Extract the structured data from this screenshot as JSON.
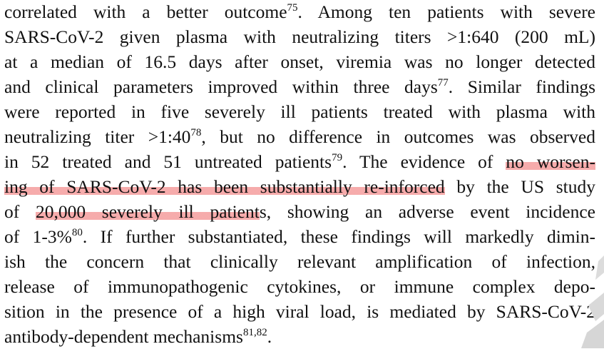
{
  "paragraph": {
    "l1": {
      "text": "correlated with a better outcome",
      "ref": "75",
      "tail": ". Among ten patients with severe"
    },
    "l2": {
      "text": "SARS-CoV-2 given plasma with neutralizing titers >1:640 (200 mL)"
    },
    "l3": {
      "text": "at a median of 16.5 days after onset, viremia was no longer detected"
    },
    "l4": {
      "text": "and clinical parameters improved within three days",
      "ref": "77",
      "tail": ". Similar findings"
    },
    "l5": {
      "text": "were reported in five severely ill patients treated with plasma with"
    },
    "l6": {
      "text": "neutralizing titer >1:40",
      "ref": "78",
      "tail": ", but no difference in outcomes was observed"
    },
    "l7": {
      "text": "in 52 treated and 51 untreated patients",
      "ref": "79",
      "tail": ". The evidence of ",
      "highlight": "no worsen-"
    },
    "l8": {
      "highlight": "ing of SARS-CoV-2 has been substantially re-inforced",
      "tail": " by the US study"
    },
    "l9": {
      "pre": "of ",
      "highlight": "20,000 severely ill patient",
      "tail": "s, showing an adverse event incidence"
    },
    "l10": {
      "text": "of 1-3%",
      "ref": "80",
      "tail": ". If further substantiated, these findings will markedly dimin-"
    },
    "l11": {
      "text": "ish the concern that clinically relevant amplification of infection,"
    },
    "l12": {
      "text": "release of immunopathogenic cytokines, or immune complex depo-"
    },
    "l13": {
      "text": "sition in the presence of a high viral load, is mediated by SARS-CoV-2"
    },
    "l14": {
      "text": "antibody-dependent mechanisms",
      "ref": "81,82",
      "tail": "."
    }
  },
  "highlight_color": "#f17878",
  "text_color": "#111111",
  "background_color": "#ffffff",
  "watermark_color": "#d9d9d9"
}
